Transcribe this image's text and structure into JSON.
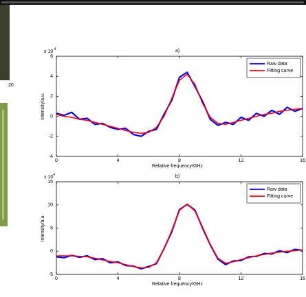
{
  "side_fragment_text": "20",
  "chart_data": [
    {
      "type": "line",
      "title": "a)",
      "axis_multiplier": "x 10",
      "axis_exponent": "-4",
      "xlabel": "Relative frequency/GHz",
      "ylabel": "Intensity/a.u.",
      "xlim": [
        0,
        16
      ],
      "xticks": [
        0,
        4,
        8,
        12,
        16
      ],
      "ylim": [
        -4,
        6
      ],
      "yticks": [
        -4,
        -2,
        0,
        2,
        4,
        6
      ],
      "legend": "upper-right",
      "grid": false,
      "x": [
        0,
        0.5,
        1,
        1.5,
        2,
        2.5,
        3,
        3.5,
        4,
        4.5,
        5,
        5.5,
        6,
        6.5,
        7,
        7.5,
        8,
        8.5,
        9,
        9.5,
        10,
        10.5,
        11,
        11.5,
        12,
        12.5,
        13,
        13.5,
        14,
        14.5,
        15,
        15.5,
        16
      ],
      "series": [
        {
          "name": "Raw data",
          "color": "#0000ff",
          "width": 2.2,
          "values": [
            0.3,
            0.1,
            0.4,
            -0.3,
            -0.2,
            -0.8,
            -0.7,
            -1.1,
            -1.3,
            -1.2,
            -1.8,
            -2.0,
            -1.5,
            -1.3,
            0.2,
            1.6,
            3.9,
            4.4,
            3.0,
            1.5,
            -0.3,
            -0.9,
            -0.6,
            -0.8,
            -0.1,
            -0.4,
            0.3,
            0.0,
            0.6,
            0.2,
            0.9,
            0.5,
            0.8
          ]
        },
        {
          "name": "Fitting curve",
          "color": "#ff0000",
          "width": 1.6,
          "values": [
            0.2,
            0,
            -0.1,
            -0.3,
            -0.4,
            -0.6,
            -0.8,
            -1,
            -1.2,
            -1.4,
            -1.6,
            -1.7,
            -1.6,
            -1.1,
            0,
            1.8,
            3.6,
            4.2,
            3.2,
            1.3,
            -0.1,
            -0.7,
            -0.8,
            -0.6,
            -0.4,
            -0.2,
            0,
            0.2,
            0.3,
            0.5,
            0.6,
            0.7,
            0.8
          ]
        }
      ]
    },
    {
      "type": "line",
      "title": "b)",
      "axis_multiplier": "x 10",
      "axis_exponent": "4",
      "xlabel": "Relative frequency/GHz",
      "ylabel": "Intensity/a.u.",
      "xlim": [
        0,
        16
      ],
      "xticks": [
        0,
        4,
        8,
        12,
        16
      ],
      "ylim": [
        -5,
        15
      ],
      "yticks": [
        -5,
        0,
        5,
        10,
        15
      ],
      "legend": "upper-right",
      "grid": false,
      "x": [
        0,
        0.5,
        1,
        1.5,
        2,
        2.5,
        3,
        3.5,
        4,
        4.5,
        5,
        5.5,
        6,
        6.5,
        7,
        7.5,
        8,
        8.5,
        9,
        9.5,
        10,
        10.5,
        11,
        11.5,
        12,
        12.5,
        13,
        13.5,
        14,
        14.5,
        15,
        15.5,
        16
      ],
      "series": [
        {
          "name": "Raw data",
          "color": "#0000ff",
          "width": 2.2,
          "values": [
            -1.2,
            -1.4,
            -0.9,
            -1.3,
            -1.0,
            -1.8,
            -1.6,
            -2.5,
            -2.3,
            -3.1,
            -3.2,
            -3.8,
            -3.3,
            -2.7,
            0.6,
            4.2,
            9.0,
            10.1,
            8.9,
            5.0,
            1.4,
            -1.7,
            -2.9,
            -2.1,
            -2.0,
            -1.2,
            -1.1,
            -0.5,
            -0.6,
            0.1,
            -0.3,
            0.4,
            0.2
          ]
        },
        {
          "name": "Fitting curve",
          "color": "#ff0000",
          "width": 1.6,
          "values": [
            -1,
            -1,
            -1,
            -1.1,
            -1.2,
            -1.5,
            -1.9,
            -2.2,
            -2.5,
            -2.9,
            -3.3,
            -3.6,
            -3.5,
            -2.5,
            0.5,
            4.5,
            8.8,
            10.2,
            8.7,
            5.2,
            1.5,
            -1.5,
            -2.6,
            -2.3,
            -1.8,
            -1.4,
            -1.0,
            -0.7,
            -0.4,
            -0.2,
            0,
            0.1,
            0.3
          ]
        }
      ]
    }
  ]
}
